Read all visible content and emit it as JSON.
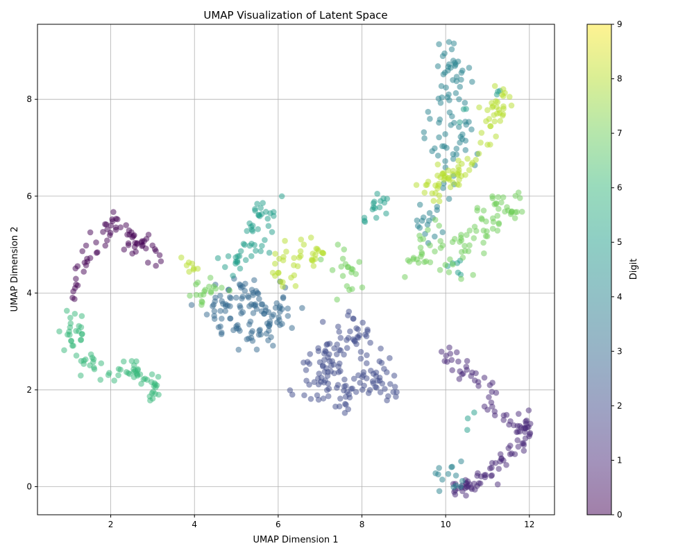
{
  "chart_data": {
    "type": "scatter",
    "title": "UMAP Visualization of Latent Space",
    "xlabel": "UMAP Dimension 1",
    "ylabel": "UMAP Dimension 2",
    "xlim": [
      0.25,
      12.6
    ],
    "ylim": [
      -0.58,
      9.55
    ],
    "x_ticks": [
      2,
      4,
      6,
      8,
      10,
      12
    ],
    "y_ticks": [
      0,
      2,
      4,
      6,
      8
    ],
    "grid": true,
    "colormap": "viridis",
    "point_alpha": 0.5,
    "colorbar": {
      "label": "Digit",
      "range": [
        0,
        9
      ],
      "ticks": [
        0,
        1,
        2,
        3,
        4,
        5,
        6,
        7,
        8,
        9
      ]
    },
    "clusters": [
      {
        "digit": 0,
        "count": 70,
        "path": [
          [
            1.15,
            3.85
          ],
          [
            1.2,
            4.55
          ],
          [
            1.5,
            4.8
          ],
          [
            1.9,
            5.3
          ],
          [
            2.1,
            5.5
          ],
          [
            2.4,
            5.35
          ],
          [
            2.55,
            5.0
          ],
          [
            2.9,
            4.9
          ],
          [
            3.25,
            4.6
          ]
        ],
        "spread": 0.12
      },
      {
        "digit": 1,
        "count": 120,
        "path": [
          [
            9.9,
            2.85
          ],
          [
            10.2,
            2.45
          ],
          [
            10.6,
            2.35
          ],
          [
            11.05,
            2.05
          ],
          [
            11.15,
            1.5
          ],
          [
            11.6,
            1.2
          ],
          [
            11.9,
            1.35
          ],
          [
            12.0,
            1.2
          ],
          [
            11.5,
            0.7
          ],
          [
            11.1,
            0.3
          ],
          [
            10.7,
            0.15
          ],
          [
            10.45,
            -0.05
          ],
          [
            10.2,
            -0.05
          ]
        ],
        "spread": 0.1
      },
      {
        "digit": 2,
        "count": 150,
        "path": [
          [
            6.7,
            2.0
          ],
          [
            7.1,
            2.2
          ],
          [
            7.5,
            1.75
          ],
          [
            7.8,
            1.75
          ],
          [
            8.1,
            2.4
          ],
          [
            8.4,
            2.3
          ],
          [
            8.6,
            2.05
          ],
          [
            7.8,
            3.1
          ],
          [
            8.0,
            3.3
          ],
          [
            7.0,
            2.6
          ],
          [
            7.3,
            2.9
          ]
        ],
        "spread": 0.22
      },
      {
        "digit": 3,
        "count": 120,
        "path": [
          [
            4.3,
            3.5
          ],
          [
            4.6,
            3.7
          ],
          [
            5.0,
            3.9
          ],
          [
            5.3,
            3.7
          ],
          [
            5.6,
            3.4
          ],
          [
            5.9,
            3.2
          ],
          [
            6.1,
            3.6
          ],
          [
            5.0,
            4.2
          ],
          [
            4.8,
            3.4
          ],
          [
            5.5,
            3.0
          ],
          [
            6.3,
            4.1
          ]
        ],
        "spread": 0.22
      },
      {
        "digit": 4,
        "count": 110,
        "path": [
          [
            9.95,
            0.2
          ],
          [
            10.15,
            0.2
          ],
          [
            9.5,
            5.2
          ],
          [
            9.9,
            5.8
          ],
          [
            10.0,
            6.8
          ],
          [
            9.7,
            7.2
          ],
          [
            9.9,
            7.8
          ],
          [
            10.1,
            8.4
          ],
          [
            10.1,
            9.0
          ],
          [
            10.3,
            8.6
          ],
          [
            10.4,
            7.4
          ],
          [
            10.3,
            7.0
          ],
          [
            10.4,
            6.4
          ],
          [
            10.5,
            7.6
          ]
        ],
        "spread": 0.18
      },
      {
        "digit": 5,
        "count": 80,
        "path": [
          [
            5.0,
            4.8
          ],
          [
            5.3,
            5.0
          ],
          [
            5.5,
            5.3
          ],
          [
            5.6,
            5.7
          ],
          [
            5.9,
            5.75
          ],
          [
            4.7,
            4.5
          ],
          [
            5.2,
            4.7
          ],
          [
            5.7,
            5.1
          ],
          [
            8.0,
            5.5
          ],
          [
            8.3,
            5.75
          ],
          [
            8.4,
            5.85
          ],
          [
            10.5,
            7.7
          ],
          [
            10.3,
            4.5
          ],
          [
            10.7,
            1.4
          ],
          [
            11.2,
            8.15
          ]
        ],
        "spread": 0.12
      },
      {
        "digit": 6,
        "count": 80,
        "path": [
          [
            0.9,
            3.0
          ],
          [
            1.1,
            3.4
          ],
          [
            1.3,
            3.2
          ],
          [
            1.2,
            2.7
          ],
          [
            1.6,
            2.5
          ],
          [
            2.0,
            2.2
          ],
          [
            2.4,
            2.5
          ],
          [
            2.7,
            2.2
          ],
          [
            3.0,
            2.1
          ],
          [
            3.1,
            2.0
          ]
        ],
        "spread": 0.12
      },
      {
        "digit": 7,
        "count": 130,
        "path": [
          [
            9.2,
            4.8
          ],
          [
            9.6,
            4.8
          ],
          [
            10.2,
            4.9
          ],
          [
            10.6,
            5.0
          ],
          [
            10.9,
            5.3
          ],
          [
            11.3,
            5.5
          ],
          [
            11.5,
            5.7
          ],
          [
            11.6,
            5.7
          ],
          [
            11.2,
            6.0
          ],
          [
            10.9,
            5.7
          ],
          [
            10.3,
            4.2
          ],
          [
            9.5,
            5.3
          ],
          [
            4.1,
            4.0
          ],
          [
            4.4,
            4.1
          ],
          [
            7.4,
            4.55
          ],
          [
            7.7,
            4.6
          ],
          [
            7.8,
            3.9
          ]
        ],
        "spread": 0.16
      },
      {
        "digit": 8,
        "count": 130,
        "path": [
          [
            3.9,
            4.5
          ],
          [
            6.0,
            4.2
          ],
          [
            6.2,
            4.8
          ],
          [
            6.5,
            5.0
          ],
          [
            6.8,
            4.7
          ],
          [
            7.0,
            4.8
          ],
          [
            9.6,
            6.2
          ],
          [
            9.8,
            6.0
          ],
          [
            10.0,
            6.6
          ],
          [
            10.2,
            6.3
          ],
          [
            10.5,
            6.5
          ],
          [
            10.8,
            7.0
          ],
          [
            11.0,
            7.6
          ],
          [
            11.2,
            7.9
          ],
          [
            11.4,
            8.1
          ],
          [
            11.3,
            7.3
          ]
        ],
        "spread": 0.14
      }
    ]
  }
}
